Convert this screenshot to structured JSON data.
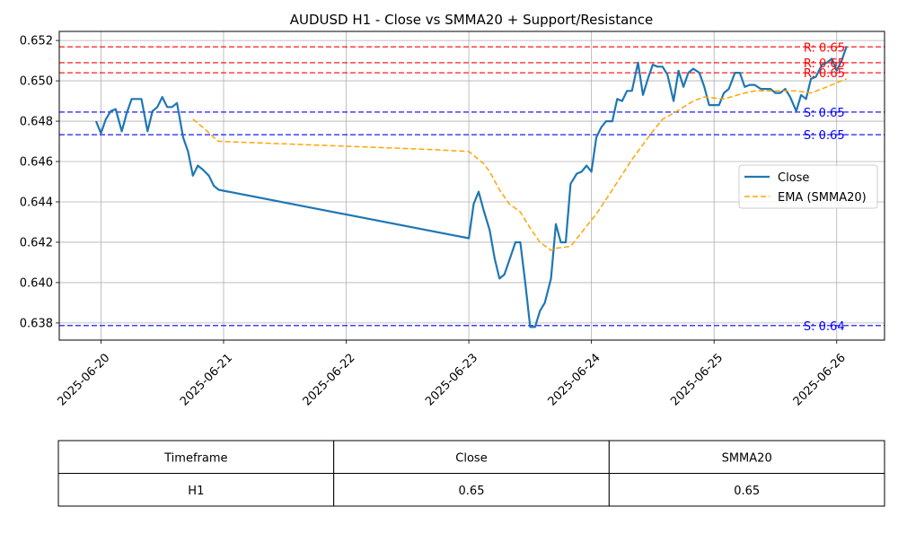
{
  "chart_data": {
    "type": "line",
    "title": "AUDUSD H1 - Close vs SMMA20 + Support/Resistance",
    "xlabel": "",
    "ylabel": "",
    "grid": true,
    "legend_position": "center-right",
    "x_ticks": [
      "2025-06-20",
      "2025-06-21",
      "2025-06-22",
      "2025-06-23",
      "2025-06-24",
      "2025-06-25",
      "2025-06-26"
    ],
    "y_ticks": [
      "0.638",
      "0.640",
      "0.642",
      "0.644",
      "0.646",
      "0.648",
      "0.650",
      "0.652"
    ],
    "x_range_days": [
      -0.34,
      6.39
    ],
    "ylim": [
      0.63715,
      0.65245
    ],
    "series": [
      {
        "name": "Close",
        "color": "#1f77b4",
        "style": "solid",
        "points": [
          [
            -0.04,
            0.648
          ],
          [
            0.0,
            0.6474
          ],
          [
            0.04,
            0.6481
          ],
          [
            0.08,
            0.6485
          ],
          [
            0.12,
            0.6486
          ],
          [
            0.17,
            0.6475
          ],
          [
            0.21,
            0.6484
          ],
          [
            0.25,
            0.6491
          ],
          [
            0.29,
            0.6491
          ],
          [
            0.33,
            0.6491
          ],
          [
            0.38,
            0.6475
          ],
          [
            0.42,
            0.6485
          ],
          [
            0.46,
            0.6487
          ],
          [
            0.5,
            0.6492
          ],
          [
            0.54,
            0.6487
          ],
          [
            0.58,
            0.6487
          ],
          [
            0.62,
            0.6489
          ],
          [
            0.67,
            0.6472
          ],
          [
            0.71,
            0.6465
          ],
          [
            0.75,
            0.6453
          ],
          [
            0.79,
            0.6458
          ],
          [
            0.83,
            0.6456
          ],
          [
            0.88,
            0.6453
          ],
          [
            0.92,
            0.6448
          ],
          [
            0.96,
            0.6446
          ],
          [
            3.0,
            0.6422
          ],
          [
            3.04,
            0.6439
          ],
          [
            3.08,
            0.6445
          ],
          [
            3.12,
            0.6436
          ],
          [
            3.17,
            0.6426
          ],
          [
            3.21,
            0.6412
          ],
          [
            3.25,
            0.6402
          ],
          [
            3.29,
            0.6404
          ],
          [
            3.33,
            0.6411
          ],
          [
            3.38,
            0.642
          ],
          [
            3.42,
            0.642
          ],
          [
            3.46,
            0.64
          ],
          [
            3.5,
            0.6378
          ],
          [
            3.54,
            0.6378
          ],
          [
            3.58,
            0.6386
          ],
          [
            3.62,
            0.639
          ],
          [
            3.67,
            0.6402
          ],
          [
            3.71,
            0.6429
          ],
          [
            3.75,
            0.642
          ],
          [
            3.79,
            0.642
          ],
          [
            3.83,
            0.6449
          ],
          [
            3.88,
            0.6454
          ],
          [
            3.92,
            0.6455
          ],
          [
            3.96,
            0.6458
          ],
          [
            4.0,
            0.6455
          ],
          [
            4.04,
            0.6472
          ],
          [
            4.08,
            0.6477
          ],
          [
            4.12,
            0.648
          ],
          [
            4.17,
            0.648
          ],
          [
            4.21,
            0.6491
          ],
          [
            4.25,
            0.649
          ],
          [
            4.29,
            0.6495
          ],
          [
            4.33,
            0.6495
          ],
          [
            4.38,
            0.6509
          ],
          [
            4.42,
            0.6493
          ],
          [
            4.46,
            0.6501
          ],
          [
            4.5,
            0.6508
          ],
          [
            4.54,
            0.6507
          ],
          [
            4.58,
            0.6507
          ],
          [
            4.62,
            0.6503
          ],
          [
            4.67,
            0.649
          ],
          [
            4.71,
            0.6505
          ],
          [
            4.75,
            0.6497
          ],
          [
            4.79,
            0.6504
          ],
          [
            4.83,
            0.6506
          ],
          [
            4.88,
            0.6504
          ],
          [
            4.92,
            0.6497
          ],
          [
            4.96,
            0.6488
          ],
          [
            5.0,
            0.6488
          ],
          [
            5.04,
            0.6488
          ],
          [
            5.08,
            0.6494
          ],
          [
            5.12,
            0.6496
          ],
          [
            5.17,
            0.6504
          ],
          [
            5.21,
            0.6504
          ],
          [
            5.25,
            0.6497
          ],
          [
            5.29,
            0.6498
          ],
          [
            5.33,
            0.6498
          ],
          [
            5.38,
            0.6496
          ],
          [
            5.42,
            0.6496
          ],
          [
            5.46,
            0.6496
          ],
          [
            5.5,
            0.6494
          ],
          [
            5.54,
            0.6494
          ],
          [
            5.58,
            0.6496
          ],
          [
            5.62,
            0.6492
          ],
          [
            5.67,
            0.6485
          ],
          [
            5.71,
            0.6493
          ],
          [
            5.75,
            0.6491
          ],
          [
            5.79,
            0.6501
          ],
          [
            5.83,
            0.6502
          ],
          [
            5.88,
            0.6508
          ],
          [
            5.92,
            0.6509
          ],
          [
            5.96,
            0.6511
          ],
          [
            6.0,
            0.6505
          ],
          [
            6.04,
            0.651
          ],
          [
            6.08,
            0.6517
          ]
        ]
      },
      {
        "name": "EMA (SMMA20)",
        "color": "#ffa500",
        "style": "dashed",
        "points": [
          [
            0.75,
            0.6481
          ],
          [
            0.83,
            0.6477
          ],
          [
            0.92,
            0.6472
          ],
          [
            0.96,
            0.647
          ],
          [
            2.67,
            0.6466
          ],
          [
            3.0,
            0.6465
          ],
          [
            3.12,
            0.6459
          ],
          [
            3.17,
            0.6455
          ],
          [
            3.25,
            0.6446
          ],
          [
            3.33,
            0.6439
          ],
          [
            3.42,
            0.6435
          ],
          [
            3.5,
            0.6427
          ],
          [
            3.58,
            0.642
          ],
          [
            3.67,
            0.6416
          ],
          [
            3.71,
            0.6417
          ],
          [
            3.83,
            0.6418
          ],
          [
            4.0,
            0.6431
          ],
          [
            4.04,
            0.6434
          ],
          [
            4.17,
            0.6446
          ],
          [
            4.33,
            0.6461
          ],
          [
            4.5,
            0.6475
          ],
          [
            4.58,
            0.6481
          ],
          [
            4.67,
            0.6484
          ],
          [
            4.83,
            0.649
          ],
          [
            4.92,
            0.6492
          ],
          [
            5.08,
            0.6491
          ],
          [
            5.25,
            0.6494
          ],
          [
            5.33,
            0.6495
          ],
          [
            5.5,
            0.6495
          ],
          [
            5.67,
            0.6495
          ],
          [
            5.79,
            0.6494
          ],
          [
            5.92,
            0.6497
          ],
          [
            6.08,
            0.6501
          ]
        ]
      }
    ],
    "levels": [
      {
        "kind": "resistance",
        "value": 0.65168,
        "label": "R: 0.65",
        "color": "#ff0000"
      },
      {
        "kind": "resistance",
        "value": 0.6509,
        "label": "R: 0.65",
        "color": "#ff0000"
      },
      {
        "kind": "resistance",
        "value": 0.6504,
        "label": "R: 0.65",
        "color": "#ff0000"
      },
      {
        "kind": "support",
        "value": 0.64845,
        "label": "S: 0.65",
        "color": "#0000ff"
      },
      {
        "kind": "support",
        "value": 0.64733,
        "label": "S: 0.65",
        "color": "#0000ff"
      },
      {
        "kind": "support",
        "value": 0.63787,
        "label": "S: 0.64",
        "color": "#0000ff"
      }
    ]
  },
  "table": {
    "headers": [
      "Timeframe",
      "Close",
      "SMMA20"
    ],
    "rows": [
      [
        "H1",
        "0.65",
        "0.65"
      ]
    ]
  }
}
